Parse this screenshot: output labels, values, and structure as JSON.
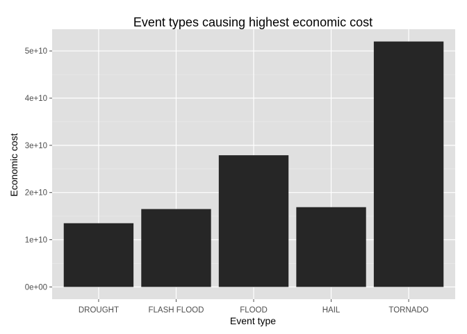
{
  "colors": {
    "panel": "#e0e0e0",
    "grid_major": "#ffffff",
    "grid_minor": "#ebebeb",
    "bar_fill": "#262626",
    "tick": "#4d4d4d"
  },
  "chart_data": {
    "type": "bar",
    "title": "Event types causing highest economic cost",
    "xlabel": "Event type",
    "ylabel": "Economic cost",
    "categories": [
      "DROUGHT",
      "FLASH FLOOD",
      "FLOOD",
      "HAIL",
      "TORNADO"
    ],
    "values": [
      13500000000,
      16500000000,
      27900000000,
      16900000000,
      52000000000
    ],
    "y_ticks": [
      0,
      10000000000,
      20000000000,
      30000000000,
      40000000000,
      50000000000
    ],
    "y_tick_labels": [
      "0e+00",
      "1e+10",
      "2e+10",
      "3e+10",
      "4e+10",
      "5e+10"
    ],
    "ylim": [
      -2600000000,
      54600000000
    ],
    "grid": true,
    "legend": "none"
  }
}
